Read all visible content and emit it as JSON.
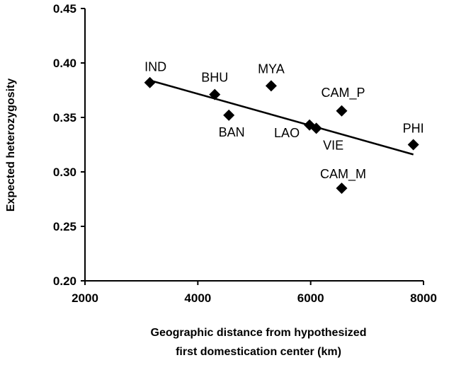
{
  "chart_data": {
    "type": "scatter",
    "xlabel_lines": [
      "Geographic distance  from hypothesized",
      "first domestication  center (km)"
    ],
    "ylabel": "Expected heterozygosity",
    "xlim": [
      2000,
      8000
    ],
    "ylim": [
      0.2,
      0.45
    ],
    "x_ticks": [
      "2000",
      "4000",
      "6000",
      "8000"
    ],
    "y_ticks": [
      "0.20",
      "0.25",
      "0.30",
      "0.35",
      "0.40",
      "0.45"
    ],
    "points": [
      {
        "label": "IND",
        "x": 3150,
        "y": 0.382
      },
      {
        "label": "BHU",
        "x": 4300,
        "y": 0.371
      },
      {
        "label": "BAN",
        "x": 4550,
        "y": 0.352
      },
      {
        "label": "MYA",
        "x": 5300,
        "y": 0.379
      },
      {
        "label": "LAO",
        "x": 5980,
        "y": 0.343
      },
      {
        "label": "VIE",
        "x": 6100,
        "y": 0.34
      },
      {
        "label": "CAM_P",
        "x": 6550,
        "y": 0.356
      },
      {
        "label": "CAM_M",
        "x": 6550,
        "y": 0.285
      },
      {
        "label": "PHI",
        "x": 7820,
        "y": 0.325
      }
    ],
    "trendline": {
      "x": [
        3150,
        7820
      ],
      "y": [
        0.384,
        0.316
      ]
    },
    "grid": false,
    "legend": "none",
    "marker_color": "#000000"
  }
}
